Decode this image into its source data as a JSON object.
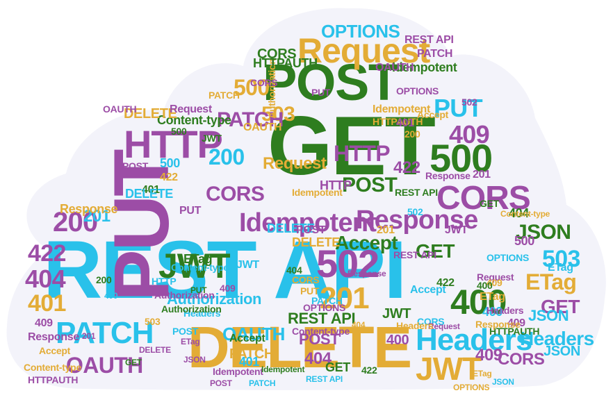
{
  "colors": {
    "cyan": "#29c1ea",
    "purple": "#9c4da6",
    "green": "#2e7d1f",
    "gold": "#e3ac36",
    "cloud": "#f3f3fa"
  },
  "words": [
    {
      "text": "REST API",
      "color": "cyan"
    },
    {
      "text": "GET",
      "color": "green"
    },
    {
      "text": "PUT",
      "color": "purple"
    },
    {
      "text": "POST",
      "color": "green"
    },
    {
      "text": "DELETE",
      "color": "gold"
    },
    {
      "text": "HTTP",
      "color": "purple"
    },
    {
      "text": "500",
      "color": "green"
    },
    {
      "text": "502",
      "color": "purple"
    },
    {
      "text": "201",
      "color": "gold"
    },
    {
      "text": "400",
      "color": "green"
    },
    {
      "text": "Request",
      "color": "gold"
    },
    {
      "text": "OPTIONS",
      "color": "cyan"
    },
    {
      "text": "Headers",
      "color": "cyan"
    },
    {
      "text": "PATCH",
      "color": "cyan"
    },
    {
      "text": "JWT",
      "color": "gold"
    },
    {
      "text": "Response",
      "color": "purple"
    },
    {
      "text": "Idempotent",
      "color": "purple"
    },
    {
      "text": "CORS",
      "color": "purple"
    },
    {
      "text": "JWT",
      "color": "green"
    },
    {
      "text": "OAUTH",
      "color": "purple"
    },
    {
      "text": "200",
      "color": "purple"
    },
    {
      "text": "404",
      "color": "purple"
    },
    {
      "text": "422",
      "color": "purple"
    },
    {
      "text": "401",
      "color": "gold"
    },
    {
      "text": "409",
      "color": "purple"
    },
    {
      "text": "PUT",
      "color": "cyan"
    },
    {
      "text": "503",
      "color": "gold"
    },
    {
      "text": "PATCH",
      "color": "purple"
    },
    {
      "text": "500",
      "color": "gold"
    },
    {
      "text": "HTTP",
      "color": "purple"
    },
    {
      "text": "200",
      "color": "cyan"
    },
    {
      "text": "POST",
      "color": "green"
    },
    {
      "text": "422",
      "color": "purple"
    },
    {
      "text": "CORS",
      "color": "purple"
    },
    {
      "text": "JSON",
      "color": "green"
    },
    {
      "text": "503",
      "color": "cyan"
    },
    {
      "text": "ETag",
      "color": "gold"
    },
    {
      "text": "GET",
      "color": "purple"
    },
    {
      "text": "GET",
      "color": "green"
    },
    {
      "text": "Accept",
      "color": "green"
    },
    {
      "text": "OAUTH",
      "color": "cyan"
    },
    {
      "text": "Authorization",
      "color": "cyan"
    },
    {
      "text": "REST API",
      "color": "green"
    },
    {
      "text": "Headers",
      "color": "cyan"
    },
    {
      "text": "409",
      "color": "purple"
    },
    {
      "text": "CORS",
      "color": "purple"
    },
    {
      "text": "Request",
      "color": "gold"
    },
    {
      "text": "Authorization",
      "color": "gold"
    },
    {
      "text": "HTTPAUTH",
      "color": "green"
    },
    {
      "text": "Idempotent",
      "color": "green"
    },
    {
      "text": "Content-type",
      "color": "green"
    },
    {
      "text": "DELETE",
      "color": "gold"
    },
    {
      "text": "JSON",
      "color": "cyan"
    },
    {
      "text": "JSON",
      "color": "cyan"
    },
    {
      "text": "OAUTH",
      "color": "purple"
    },
    {
      "text": "POST",
      "color": "purple"
    },
    {
      "text": "404",
      "color": "purple"
    },
    {
      "text": "JWT",
      "color": "green"
    },
    {
      "text": "400",
      "color": "purple"
    },
    {
      "text": "PATCH",
      "color": "gold"
    },
    {
      "text": "401",
      "color": "cyan"
    },
    {
      "text": "201",
      "color": "cyan"
    },
    {
      "text": "ETag",
      "color": "green"
    },
    {
      "text": "Response",
      "color": "gold"
    },
    {
      "text": "500",
      "color": "cyan"
    },
    {
      "text": "CORS",
      "color": "green"
    },
    {
      "text": "PATCH",
      "color": "purple"
    },
    {
      "text": "REST API",
      "color": "purple"
    },
    {
      "text": "DELETE",
      "color": "cyan"
    },
    {
      "text": "JWT",
      "color": "cyan"
    },
    {
      "text": "Content-type",
      "color": "cyan"
    },
    {
      "text": "422",
      "color": "gold"
    },
    {
      "text": "PUT",
      "color": "purple"
    },
    {
      "text": "POST",
      "color": "purple"
    },
    {
      "text": "HTTPAUTH",
      "color": "gold"
    },
    {
      "text": "Accept",
      "color": "cyan"
    },
    {
      "text": "OPTIONS",
      "color": "purple"
    },
    {
      "text": "Idempotent",
      "color": "gold"
    },
    {
      "text": "401",
      "color": "purple"
    },
    {
      "text": "502",
      "color": "cyan"
    },
    {
      "text": "400",
      "color": "cyan"
    },
    {
      "text": "409",
      "color": "purple"
    },
    {
      "text": "ETag",
      "color": "cyan"
    },
    {
      "text": "Headers",
      "color": "purple"
    },
    {
      "text": "GET",
      "color": "green"
    },
    {
      "text": "Response",
      "color": "purple"
    },
    {
      "text": "Request",
      "color": "purple"
    },
    {
      "text": "404",
      "color": "green"
    },
    {
      "text": "500",
      "color": "purple"
    },
    {
      "text": "201",
      "color": "purple"
    },
    {
      "text": "HTTP",
      "color": "purple"
    },
    {
      "text": "PUT",
      "color": "gold"
    },
    {
      "text": "PATCH",
      "color": "cyan"
    },
    {
      "text": "POST",
      "color": "purple"
    },
    {
      "text": "DELETE",
      "color": "gold"
    },
    {
      "text": "CORS",
      "color": "cyan"
    },
    {
      "text": "OAUTH",
      "color": "purple"
    },
    {
      "text": "409",
      "color": "gold"
    },
    {
      "text": "422",
      "color": "green"
    },
    {
      "text": "Idempotent",
      "color": "gold"
    },
    {
      "text": "Content-type",
      "color": "purple"
    },
    {
      "text": "Authorization",
      "color": "purple"
    },
    {
      "text": "Request",
      "color": "purple"
    },
    {
      "text": "Accept",
      "color": "gold"
    },
    {
      "text": "200",
      "color": "gold"
    },
    {
      "text": "503",
      "color": "gold"
    },
    {
      "text": "OPTIONS",
      "color": "cyan"
    },
    {
      "text": "GET",
      "color": "green"
    },
    {
      "text": "HTTPAUTH",
      "color": "green"
    },
    {
      "text": "ETag",
      "color": "gold"
    },
    {
      "text": "JWT",
      "color": "purple"
    },
    {
      "text": "REST API",
      "color": "green"
    },
    {
      "text": "201",
      "color": "gold"
    },
    {
      "text": "400",
      "color": "green"
    },
    {
      "text": "404",
      "color": "green"
    },
    {
      "text": "409",
      "color": "purple"
    },
    {
      "text": "PUT",
      "color": "green"
    },
    {
      "text": "Headers",
      "color": "cyan"
    },
    {
      "text": "Response",
      "color": "purple"
    },
    {
      "text": "Response",
      "color": "gold"
    },
    {
      "text": "Accept",
      "color": "green"
    },
    {
      "text": "Content-type",
      "color": "gold"
    },
    {
      "text": "OPTIONS",
      "color": "purple"
    },
    {
      "text": "Authorization",
      "color": "green"
    },
    {
      "text": "JSON",
      "color": "purple"
    },
    {
      "text": "POST",
      "color": "cyan"
    },
    {
      "text": "CORS",
      "color": "gold"
    },
    {
      "text": "HTTP",
      "color": "cyan"
    },
    {
      "text": "REST API",
      "color": "purple"
    },
    {
      "text": "502",
      "color": "purple"
    },
    {
      "text": "500",
      "color": "green"
    },
    {
      "text": "422",
      "color": "green"
    },
    {
      "text": "401",
      "color": "green"
    },
    {
      "text": "DELETE",
      "color": "cyan"
    },
    {
      "text": "Idempotent",
      "color": "purple"
    },
    {
      "text": "ETag",
      "color": "purple"
    },
    {
      "text": "CORS",
      "color": "purple"
    },
    {
      "text": "OAUTH",
      "color": "gold"
    },
    {
      "text": "PATCH",
      "color": "gold"
    },
    {
      "text": "JWT",
      "color": "green"
    },
    {
      "text": "PUT",
      "color": "purple"
    },
    {
      "text": "Request",
      "color": "purple"
    },
    {
      "text": "Headers",
      "color": "gold"
    },
    {
      "text": "404",
      "color": "gold"
    },
    {
      "text": "400",
      "color": "cyan"
    },
    {
      "text": "200",
      "color": "green"
    },
    {
      "text": "201",
      "color": "purple"
    },
    {
      "text": "409",
      "color": "purple"
    },
    {
      "text": "Response",
      "color": "purple"
    },
    {
      "text": "Accept",
      "color": "gold"
    },
    {
      "text": "HTTPAUTH",
      "color": "purple"
    },
    {
      "text": "Content-type",
      "color": "gold"
    },
    {
      "text": "DELETE",
      "color": "purple"
    },
    {
      "text": "GET",
      "color": "green"
    },
    {
      "text": "ETag",
      "color": "gold"
    },
    {
      "text": "JSON",
      "color": "cyan"
    },
    {
      "text": "OPTIONS",
      "color": "gold"
    },
    {
      "text": "REST API",
      "color": "cyan"
    },
    {
      "text": "POST",
      "color": "purple"
    },
    {
      "text": "PATCH",
      "color": "cyan"
    },
    {
      "text": "Idempotent",
      "color": "green"
    }
  ]
}
